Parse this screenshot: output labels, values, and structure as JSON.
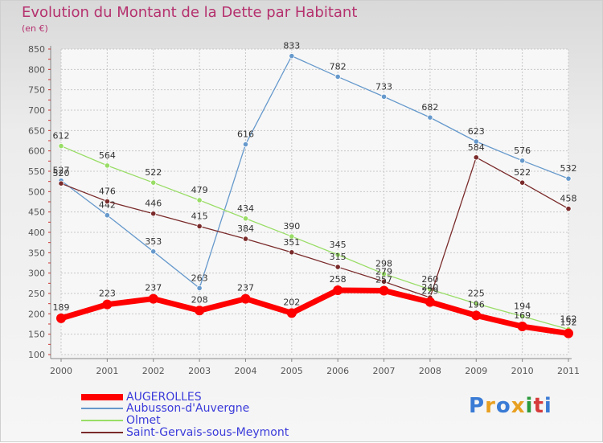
{
  "title": "Evolution du Montant de la Dette par Habitant",
  "subtitle": "(en €)",
  "logo": "Proxiti",
  "chart_data": {
    "type": "line",
    "x": [
      2000,
      2001,
      2002,
      2003,
      2004,
      2005,
      2006,
      2007,
      2008,
      2009,
      2010,
      2011
    ],
    "ylim": [
      100,
      850
    ],
    "yticks": [
      100,
      150,
      200,
      250,
      300,
      350,
      400,
      450,
      500,
      550,
      600,
      650,
      700,
      750,
      800,
      850
    ],
    "grid": true,
    "legend_position": "bottom-left",
    "series": [
      {
        "name": "AUGEROLLES",
        "color": "#ff0000",
        "values": [
          189,
          223,
          237,
          208,
          237,
          202,
          258,
          257,
          229,
          196,
          169,
          152
        ]
      },
      {
        "name": "Aubusson-d'Auvergne",
        "color": "#6699cc",
        "values": [
          527,
          442,
          353,
          263,
          616,
          833,
          782,
          733,
          682,
          623,
          576,
          532
        ]
      },
      {
        "name": "Olmet",
        "color": "#99dd66",
        "values": [
          612,
          564,
          522,
          479,
          434,
          390,
          345,
          298,
          260,
          225,
          194,
          162
        ]
      },
      {
        "name": "Saint-Gervais-sous-Meymont",
        "color": "#7a2a2a",
        "values": [
          520,
          476,
          446,
          415,
          384,
          351,
          315,
          279,
          240,
          584,
          522,
          458
        ]
      }
    ]
  }
}
